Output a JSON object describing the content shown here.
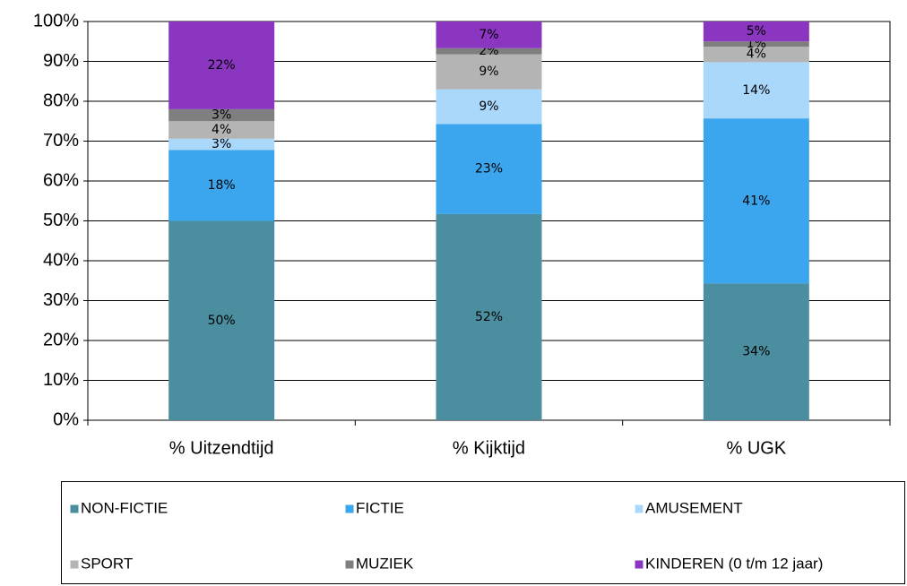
{
  "chart_data": {
    "type": "stacked_bar",
    "categories": [
      "% Uitzendtijd",
      "% Kijktijd",
      "% UGK"
    ],
    "series": [
      {
        "name": "NON-FICTIE",
        "color": "#4a8e9f",
        "values": [
          50,
          51.7,
          34.3
        ],
        "value_labels": [
          "50%",
          "52%",
          "34%"
        ]
      },
      {
        "name": "FICTIE",
        "color": "#3ba6ee",
        "values": [
          17.8,
          22.6,
          41.4
        ],
        "value_labels": [
          "18%",
          "23%",
          "41%"
        ]
      },
      {
        "name": "AMUSEMENT",
        "color": "#a9d8fb",
        "values": [
          2.8,
          8.7,
          14.1
        ],
        "value_labels": [
          "3%",
          "9%",
          "14%"
        ]
      },
      {
        "name": "SPORT",
        "color": "#b4b4b4",
        "values": [
          4.4,
          8.8,
          3.9
        ],
        "value_labels": [
          "4%",
          "9%",
          "4%"
        ]
      },
      {
        "name": "MUZIEK",
        "color": "#7f7f7f",
        "values": [
          3.0,
          1.5,
          1.3
        ],
        "value_labels": [
          "3%",
          "2%",
          "1%"
        ]
      },
      {
        "name": "KINDEREN (0 t/m 12 jaar)",
        "color": "#8a36c1",
        "values": [
          22,
          6.7,
          5
        ],
        "value_labels": [
          "22%",
          "7%",
          "5%"
        ]
      }
    ],
    "ylim": [
      0,
      100
    ],
    "yticks": [
      {
        "value": 0,
        "label": "0%"
      },
      {
        "value": 10,
        "label": "10%"
      },
      {
        "value": 20,
        "label": "20%"
      },
      {
        "value": 30,
        "label": "30%"
      },
      {
        "value": 40,
        "label": "40%"
      },
      {
        "value": 50,
        "label": "50%"
      },
      {
        "value": 60,
        "label": "60%"
      },
      {
        "value": 70,
        "label": "70%"
      },
      {
        "value": 80,
        "label": "80%"
      },
      {
        "value": 90,
        "label": "90%"
      },
      {
        "value": 100,
        "label": "100%"
      }
    ],
    "grid": true,
    "legend": "bottom"
  }
}
